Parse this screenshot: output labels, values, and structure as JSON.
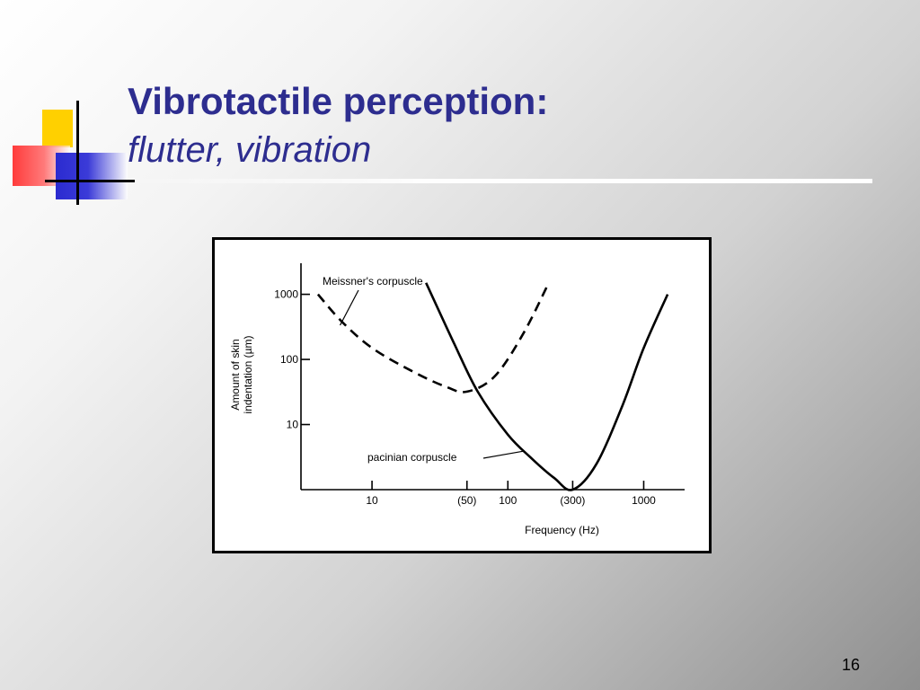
{
  "slide": {
    "title": "Vibrotactile perception:",
    "subtitle": "flutter, vibration",
    "page_number": "16"
  },
  "chart_data": {
    "type": "line",
    "xlabel": "Frequency (Hz)",
    "ylabel_line1": "Amount of skin",
    "ylabel_line2": "indentation (µm)",
    "x_scale": "log",
    "y_scale": "log",
    "xlim": [
      3,
      2000
    ],
    "ylim": [
      1,
      3000
    ],
    "x_ticks": [
      {
        "value": 10,
        "label": "10"
      },
      {
        "value": 50,
        "label": "(50)"
      },
      {
        "value": 100,
        "label": "100"
      },
      {
        "value": 300,
        "label": "(300)"
      },
      {
        "value": 1000,
        "label": "1000"
      }
    ],
    "y_ticks": [
      {
        "value": 10,
        "label": "10"
      },
      {
        "value": 100,
        "label": "100"
      },
      {
        "value": 1000,
        "label": "1000"
      }
    ],
    "grid": false,
    "series": [
      {
        "name": "Meissner's corpuscle",
        "style": "dashed",
        "x": [
          4,
          6,
          10,
          20,
          35,
          50,
          80,
          130,
          200
        ],
        "y": [
          1000,
          380,
          150,
          65,
          38,
          32,
          55,
          250,
          1500
        ]
      },
      {
        "name": "pacinian corpuscle",
        "style": "solid",
        "x": [
          25,
          40,
          60,
          100,
          150,
          220,
          300,
          450,
          700,
          1000,
          1500
        ],
        "y": [
          1500,
          180,
          32,
          7,
          3,
          1.5,
          1,
          2.5,
          20,
          150,
          1000
        ]
      }
    ]
  }
}
